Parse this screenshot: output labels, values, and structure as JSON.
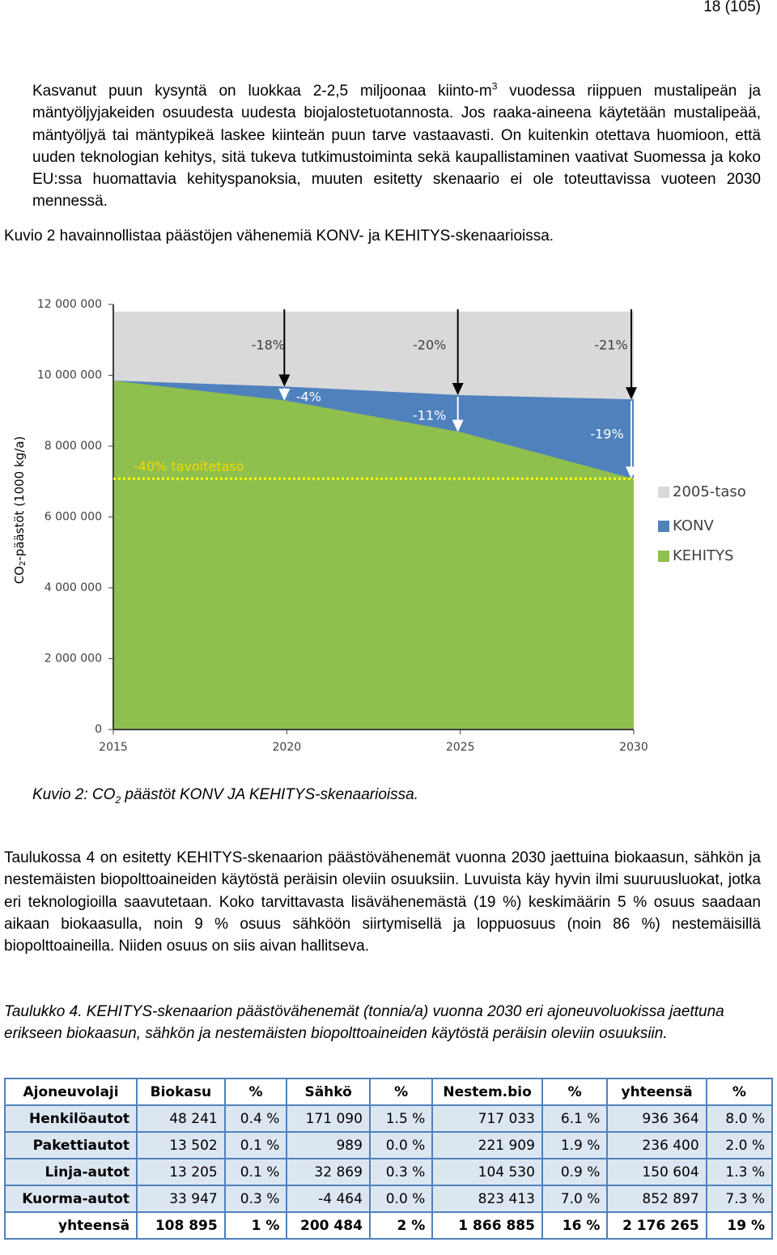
{
  "header": {
    "page_number": "18 (105)"
  },
  "paragraph_1": {
    "before": "Kasvanut puun kysyntä on luokkaa 2-2,5 miljoonaa kiinto-m",
    "sup": "3",
    "after": " vuodessa riippuen mustalipeän ja mäntyöljyjakeiden osuudesta uudesta biojalostetuotannosta. Jos raaka-aineena käytetään mustalipeää, mäntyöljyä tai mäntypikeä laskee kiinteän puun tarve vastaavasti. On kuitenkin otettava huomioon, että uuden teknologian kehitys, sitä tukeva tutkimustoiminta sekä kaupallistaminen vaativat Suomessa ja koko EU:ssa huomattavia kehityspanoksia, muuten esitetty skenaario ei ole toteuttavissa vuoteen 2030 mennessä."
  },
  "paragraph_2": "Kuvio 2 havainnollistaa päästöjen vähenemiä KONV- ja KEHITYS-skenaarioissa.",
  "chart_data": {
    "type": "area",
    "ylabel": {
      "main": "CO",
      "sub": "2",
      "rest": "-päästöt (1000 kg/a)"
    },
    "x": [
      2015,
      2020,
      2025,
      2030
    ],
    "series": [
      {
        "name": "2005-taso",
        "color": "#d9d9d9",
        "values": [
          11800000,
          11800000,
          11800000,
          11800000
        ]
      },
      {
        "name": "KONV",
        "color": "#4f81bd",
        "values": [
          9850000,
          9680000,
          9440000,
          9320000
        ]
      },
      {
        "name": "KEHITYS",
        "color": "#8fbf4d",
        "values": [
          9850000,
          9280000,
          8400000,
          7080000
        ]
      }
    ],
    "target": {
      "value": 7080000,
      "label": "-40% tavoitetaso",
      "color": "#ffff00"
    },
    "konv_reductions": [
      {
        "text": "-18%",
        "x": 2020
      },
      {
        "text": "-20%",
        "x": 2025
      },
      {
        "text": "-21%",
        "x": 2030
      }
    ],
    "kehitys_reductions": [
      {
        "text": "-4%",
        "x": 2020
      },
      {
        "text": "-11%",
        "x": 2025
      },
      {
        "text": "-19%",
        "x": 2030
      }
    ],
    "xlim": [
      2015,
      2030
    ],
    "xticks": [
      2015,
      2020,
      2025,
      2030
    ],
    "ylim": [
      0,
      12000000
    ],
    "yticks": [
      0,
      {
        "value": 2000000,
        "label": "2 000 000"
      },
      {
        "value": 4000000,
        "label": "4 000 000"
      },
      {
        "value": 6000000,
        "label": "6 000 000"
      },
      {
        "value": 8000000,
        "label": "8 000 000"
      },
      {
        "value": 10000000,
        "label": "10 000 000"
      },
      {
        "value": 12000000,
        "label": "12 000 000"
      }
    ],
    "legend": "right"
  },
  "caption": {
    "before": "Kuvio 2: CO",
    "sub": "2",
    "after": " päästöt KONV JA KEHITYS-skenaarioissa."
  },
  "paragraph_3": "Taulukossa 4 on esitetty KEHITYS-skenaarion päästövähenemät vuonna 2030 jaettuina biokaasun, sähkön ja nestemäisten biopolttoaineiden käytöstä peräisin oleviin osuuksiin. Luvuista käy hyvin ilmi suuruusluokat, jotka eri teknologioilla saavutetaan. Koko tarvittavasta lisävähenemästä (19 %) keskimäärin 5 % osuus saadaan aikaan biokaasulla, noin 9 % osuus sähköön siirtymisellä ja loppuosuus (noin 86 %) nestemäisillä biopolttoaineilla. Niiden osuus on siis aivan hallitseva.",
  "table_caption": "Taulukko 4. KEHITYS-skenaarion päästövähenemät (tonnia/a) vuonna 2030 eri ajoneuvoluokissa jaettuna erikseen biokaasun, sähkön ja nestemäisten biopolttoaineiden käytöstä peräisin oleviin osuuksiin.",
  "table": {
    "header": [
      "Ajoneuvolaji",
      "Biokasu",
      "%",
      "Sähkö",
      "%",
      "Nestem.bio",
      "%",
      "yhteensä",
      "%"
    ],
    "rows": [
      [
        "Henkilöautot",
        "48 241",
        "0.4 %",
        "171 090",
        "1.5 %",
        "717 033",
        "6.1 %",
        "936 364",
        "8.0 %"
      ],
      [
        "Pakettiautot",
        "13 502",
        "0.1 %",
        "989",
        "0.0 %",
        "221 909",
        "1.9 %",
        "236 400",
        "2.0 %"
      ],
      [
        "Linja-autot",
        "13 205",
        "0.1 %",
        "32 869",
        "0.3 %",
        "104 530",
        "0.9 %",
        "150 604",
        "1.3 %"
      ],
      [
        "Kuorma-autot",
        "33 947",
        "0.3 %",
        "-4 464",
        "0.0 %",
        "823 413",
        "7.0 %",
        "852 897",
        "7.3 %"
      ],
      [
        "yhteensä",
        "108 895",
        "1 %",
        "200 484",
        "2 %",
        "1 866 885",
        "16 %",
        "2 176 265",
        "19 %"
      ]
    ]
  }
}
